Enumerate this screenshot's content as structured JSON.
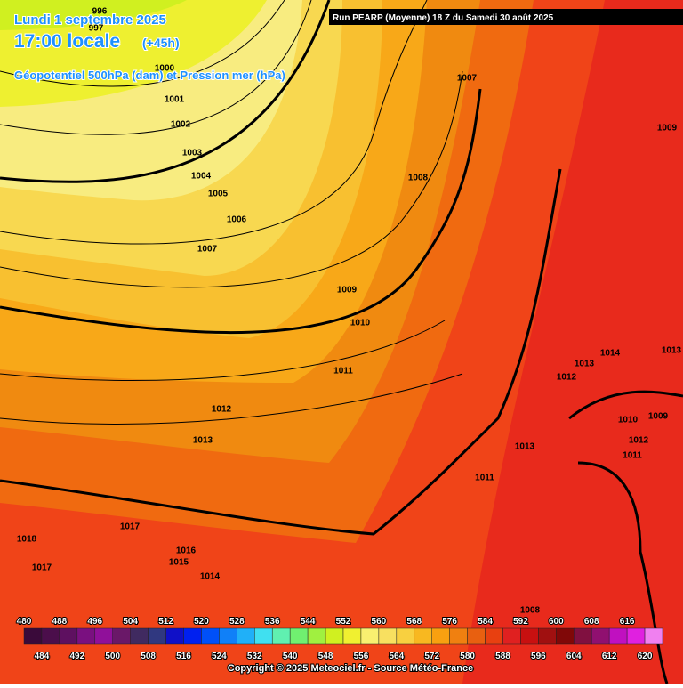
{
  "header": {
    "title": "Lundi 1 septembre 2025",
    "time": "17:00 locale",
    "lead": "(+45h)",
    "subtitle": "Géopotentiel 500hPa (dam) et Pression mer (hPa)",
    "run": "Run PEARP (Moyenne) 18 Z du Samedi 30 août 2025"
  },
  "isobar_labels": [
    "996",
    "997",
    "1000",
    "1001",
    "1002",
    "1003",
    "1004",
    "1005",
    "1006",
    "1007",
    "1007",
    "1008",
    "1009",
    "1010",
    "1011",
    "1012",
    "1013",
    "1009",
    "1013",
    "1014",
    "1013",
    "1012",
    "1010",
    "1009",
    "1012",
    "1011",
    "1013",
    "1011",
    "1017",
    "1018",
    "1016",
    "1015",
    "1017",
    "1014",
    "1008"
  ],
  "colorbar": [
    {
      "value": 480,
      "color": "#3a0a3a"
    },
    {
      "value": 484,
      "color": "#4b0e4b"
    },
    {
      "value": 488,
      "color": "#5e1060"
    },
    {
      "value": 492,
      "color": "#7a1080"
    },
    {
      "value": 496,
      "color": "#90109a"
    },
    {
      "value": 500,
      "color": "#6a1868"
    },
    {
      "value": 504,
      "color": "#402a60"
    },
    {
      "value": 508,
      "color": "#303880"
    },
    {
      "value": 512,
      "color": "#1010c8"
    },
    {
      "value": 516,
      "color": "#0020f0"
    },
    {
      "value": 520,
      "color": "#0050f8"
    },
    {
      "value": 524,
      "color": "#1080f8"
    },
    {
      "value": 528,
      "color": "#20b0f8"
    },
    {
      "value": 532,
      "color": "#40e0f0"
    },
    {
      "value": 536,
      "color": "#60f0b0"
    },
    {
      "value": 540,
      "color": "#70f070"
    },
    {
      "value": 544,
      "color": "#a0f040"
    },
    {
      "value": 548,
      "color": "#d0f020"
    },
    {
      "value": 552,
      "color": "#f0f030"
    },
    {
      "value": 556,
      "color": "#f8f070"
    },
    {
      "value": 560,
      "color": "#f8e060"
    },
    {
      "value": 564,
      "color": "#f8d040"
    },
    {
      "value": 568,
      "color": "#f8b820"
    },
    {
      "value": 572,
      "color": "#f8a010"
    },
    {
      "value": 576,
      "color": "#f08010"
    },
    {
      "value": 580,
      "color": "#e86010"
    },
    {
      "value": 584,
      "color": "#e84010"
    },
    {
      "value": 588,
      "color": "#e02020"
    },
    {
      "value": 592,
      "color": "#c81010"
    },
    {
      "value": 596,
      "color": "#a01010"
    },
    {
      "value": 600,
      "color": "#800808"
    },
    {
      "value": 604,
      "color": "#801040"
    },
    {
      "value": 608,
      "color": "#901070"
    },
    {
      "value": 612,
      "color": "#c010c0"
    },
    {
      "value": 616,
      "color": "#e020e0"
    },
    {
      "value": 620,
      "color": "#f080f0"
    }
  ],
  "footer": {
    "copyright": "Copyright © 2025 Meteociel.fr - Source Météo-France"
  }
}
